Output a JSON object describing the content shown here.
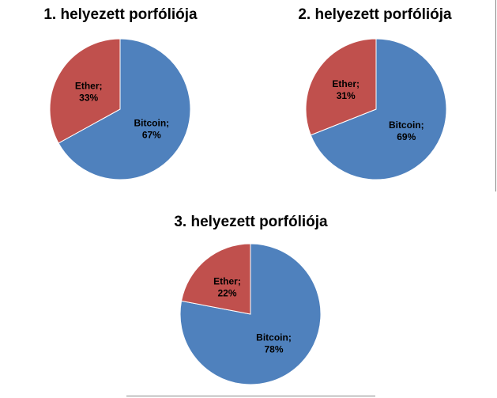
{
  "chart_data": [
    {
      "type": "pie",
      "title": "1. helyezett porfóliója",
      "slices": [
        {
          "name": "Bitcoin",
          "value": 67,
          "label_name": "Bitcoin;",
          "label_value": "67%"
        },
        {
          "name": "Ether",
          "value": 33,
          "label_name": "Ether;",
          "label_value": "33%"
        }
      ]
    },
    {
      "type": "pie",
      "title": "2. helyezett porfóliója",
      "slices": [
        {
          "name": "Bitcoin",
          "value": 69,
          "label_name": "Bitcoin;",
          "label_value": "69%"
        },
        {
          "name": "Ether",
          "value": 31,
          "label_name": "Ether;",
          "label_value": "31%"
        }
      ]
    },
    {
      "type": "pie",
      "title": "3. helyezett porfóliója",
      "slices": [
        {
          "name": "Bitcoin",
          "value": 78,
          "label_name": "Bitcoin;",
          "label_value": "78%"
        },
        {
          "name": "Ether",
          "value": 22,
          "label_name": "Ether;",
          "label_value": "22%"
        }
      ]
    }
  ],
  "colors": {
    "Bitcoin": "#4f81bd",
    "Ether": "#c0504d"
  }
}
